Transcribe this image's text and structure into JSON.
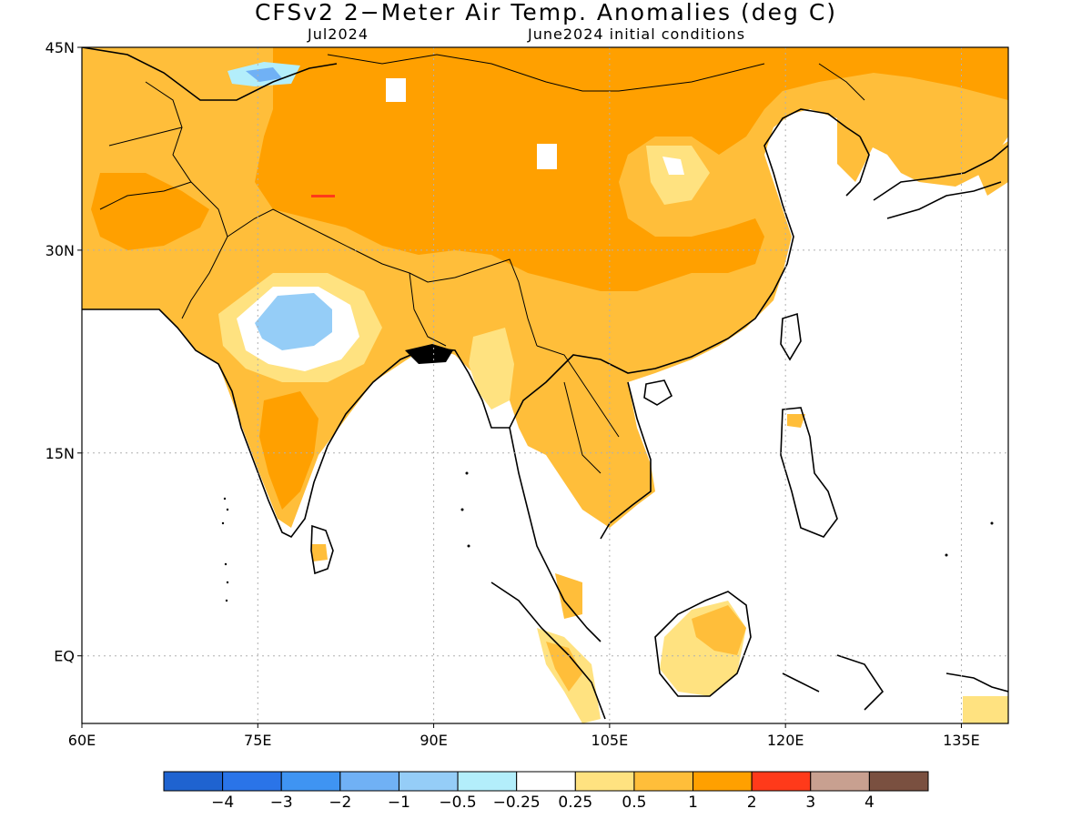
{
  "title": "CFSv2 2−Meter Air Temp. Anomalies (deg C)",
  "subtitle_left": "Jul2024",
  "subtitle_right": "June2024 initial conditions",
  "axes": {
    "lat_labels": [
      "45N",
      "30N",
      "15N",
      "EQ"
    ],
    "lat_values": [
      45,
      30,
      15,
      0
    ],
    "lon_labels": [
      "60E",
      "75E",
      "90E",
      "105E",
      "120E",
      "135E"
    ],
    "lon_values": [
      60,
      75,
      90,
      105,
      120,
      135
    ],
    "lon_range": [
      60,
      139
    ],
    "lat_range": [
      -5,
      45
    ],
    "grid": "dotted"
  },
  "colorbar": {
    "colors": [
      "#1f63d0",
      "#2a74e8",
      "#3f94f2",
      "#70b1f5",
      "#95cdf7",
      "#b3eefb",
      "#ffffff",
      "#ffe280",
      "#ffbe3a",
      "#ffa000",
      "#ff3a1a",
      "#c8a090",
      "#7a5040"
    ],
    "labels": [
      "−4",
      "−3",
      "−2",
      "−1",
      "−0.5",
      "−0.25",
      "0.25",
      "0.5",
      "1",
      "2",
      "3",
      "4"
    ]
  }
}
